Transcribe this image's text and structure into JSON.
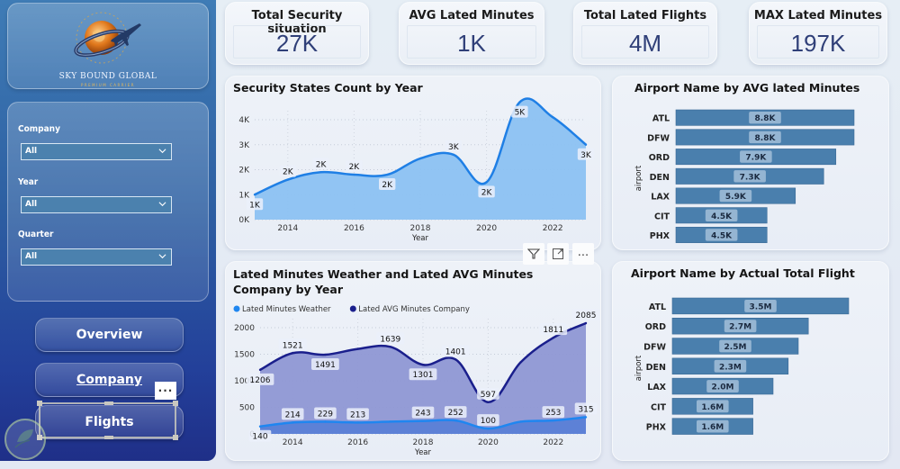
{
  "brand": {
    "title": "SKY BOUND GLOBAL",
    "subtitle": "PREMIUM CARRIER"
  },
  "filters": [
    {
      "label": "Company",
      "value": "All"
    },
    {
      "label": "Year",
      "value": "All"
    },
    {
      "label": "Quarter",
      "value": "All"
    }
  ],
  "nav": [
    {
      "label": "Overview",
      "active": false
    },
    {
      "label": "Company",
      "active": true
    },
    {
      "label": "Flights",
      "active": false,
      "selected": true
    }
  ],
  "more_options": "...",
  "kpis": [
    {
      "title": "Total Security situation",
      "value": "27K"
    },
    {
      "title": "AVG Lated Minutes",
      "value": "1K"
    },
    {
      "title": "Total Lated Flights",
      "value": "4M"
    },
    {
      "title": "MAX Lated Minutes",
      "value": "197K"
    }
  ],
  "visual_toolbar": {
    "icons": [
      "filter-icon",
      "focus-mode-icon",
      "more-options-icon"
    ],
    "more_label": "..."
  },
  "chart_data": [
    {
      "id": "security",
      "type": "area",
      "title": "Security States Count by Year",
      "xlabel": "Year",
      "ylabel": "",
      "x": [
        2013,
        2014,
        2015,
        2016,
        2017,
        2018,
        2019,
        2020,
        2021,
        2022,
        2023
      ],
      "x_ticks": [
        2014,
        2016,
        2018,
        2020,
        2022
      ],
      "y_ticks": [
        0,
        1000,
        2000,
        3000,
        4000
      ],
      "y_tick_labels": [
        "0K",
        "1K",
        "2K",
        "3K",
        "4K"
      ],
      "ylim": [
        0,
        4700
      ],
      "grid": true,
      "series": [
        {
          "name": "Security States Count",
          "color": "#1f7fe5",
          "fill": "#8cc1f2",
          "values": [
            1000,
            1600,
            1900,
            1800,
            1800,
            2450,
            2600,
            1500,
            4700,
            4100,
            3000
          ],
          "labels": [
            "1K",
            "2K",
            "2K",
            "2K",
            "2K",
            "",
            "3K",
            "2K",
            "5K",
            "",
            "3K"
          ],
          "label_pos": [
            "below",
            "above",
            "above",
            "above",
            "below",
            "",
            "above",
            "below",
            "below",
            "",
            "below"
          ]
        }
      ]
    },
    {
      "id": "lated",
      "type": "area",
      "title": "Lated Minutes Weather and Lated AVG Minutes Company by Year",
      "xlabel": "Year",
      "ylabel": "",
      "x": [
        2013,
        2014,
        2015,
        2016,
        2017,
        2018,
        2019,
        2020,
        2021,
        2022,
        2023
      ],
      "x_ticks": [
        2014,
        2016,
        2018,
        2020,
        2022
      ],
      "y_ticks": [
        0,
        500,
        1000,
        1500,
        2000
      ],
      "y_tick_labels": [
        "0",
        "500",
        "1000",
        "1500",
        "2000"
      ],
      "ylim": [
        0,
        2100
      ],
      "grid": true,
      "legend": "top-left",
      "series": [
        {
          "name": "Lated AVG Minutes Company",
          "color": "#1a1f8c",
          "fill": "#8f97d4",
          "values": [
            1206,
            1521,
            1491,
            1600,
            1639,
            1301,
            1401,
            597,
            1350,
            1811,
            2085
          ],
          "labels": [
            "1206",
            "1521",
            "1491",
            "",
            "1639",
            "1301",
            "1401",
            "597",
            "",
            "1811",
            "2085"
          ],
          "label_pos": [
            "below",
            "above",
            "below",
            "",
            "above",
            "below",
            "above",
            "above",
            "",
            "above",
            "above"
          ]
        },
        {
          "name": "Lated Minutes Weather",
          "color": "#1f86f0",
          "fill": "#5a7fd6",
          "values": [
            140,
            214,
            229,
            213,
            230,
            243,
            252,
            100,
            230,
            253,
            315
          ],
          "labels": [
            "140",
            "214",
            "229",
            "213",
            "",
            "243",
            "252",
            "100",
            "",
            "253",
            "315"
          ],
          "label_pos": [
            "below",
            "above",
            "above",
            "above",
            "",
            "above",
            "above",
            "above",
            "",
            "above",
            "above"
          ]
        }
      ]
    },
    {
      "id": "avg_airport",
      "type": "bar",
      "orientation": "horizontal",
      "title": "Airport Name by AVG lated Minutes",
      "ylabel": "airport",
      "categories": [
        "ATL",
        "DFW",
        "ORD",
        "DEN",
        "LAX",
        "CLT",
        "PHX"
      ],
      "category_labels": [
        "ATL",
        "DFW",
        "ORD",
        "DEN",
        "LAX",
        "CIT",
        "PHX"
      ],
      "values": [
        8800,
        8800,
        7900,
        7300,
        5900,
        4500,
        4500
      ],
      "labels": [
        "8.8K",
        "8.8K",
        "7.9K",
        "7.3K",
        "5.9K",
        "4.5K",
        "4.5K"
      ],
      "xlim": [
        0,
        8800
      ],
      "color": "#4a7fad"
    },
    {
      "id": "flight_airport",
      "type": "bar",
      "orientation": "horizontal",
      "title": "Airport Name by Actual Total Flight",
      "ylabel": "airport",
      "categories": [
        "ATL",
        "ORD",
        "DFW",
        "DEN",
        "LAX",
        "CLT",
        "PHX"
      ],
      "category_labels": [
        "ATL",
        "ORD",
        "DFW",
        "DEN",
        "LAX",
        "CIT",
        "PHX"
      ],
      "values": [
        3500000,
        2700000,
        2500000,
        2300000,
        2000000,
        1600000,
        1600000
      ],
      "labels": [
        "3.5M",
        "2.7M",
        "2.5M",
        "2.3M",
        "2.0M",
        "1.6M",
        "1.6M"
      ],
      "xlim": [
        0,
        3500000
      ],
      "color": "#4a7fad"
    }
  ]
}
